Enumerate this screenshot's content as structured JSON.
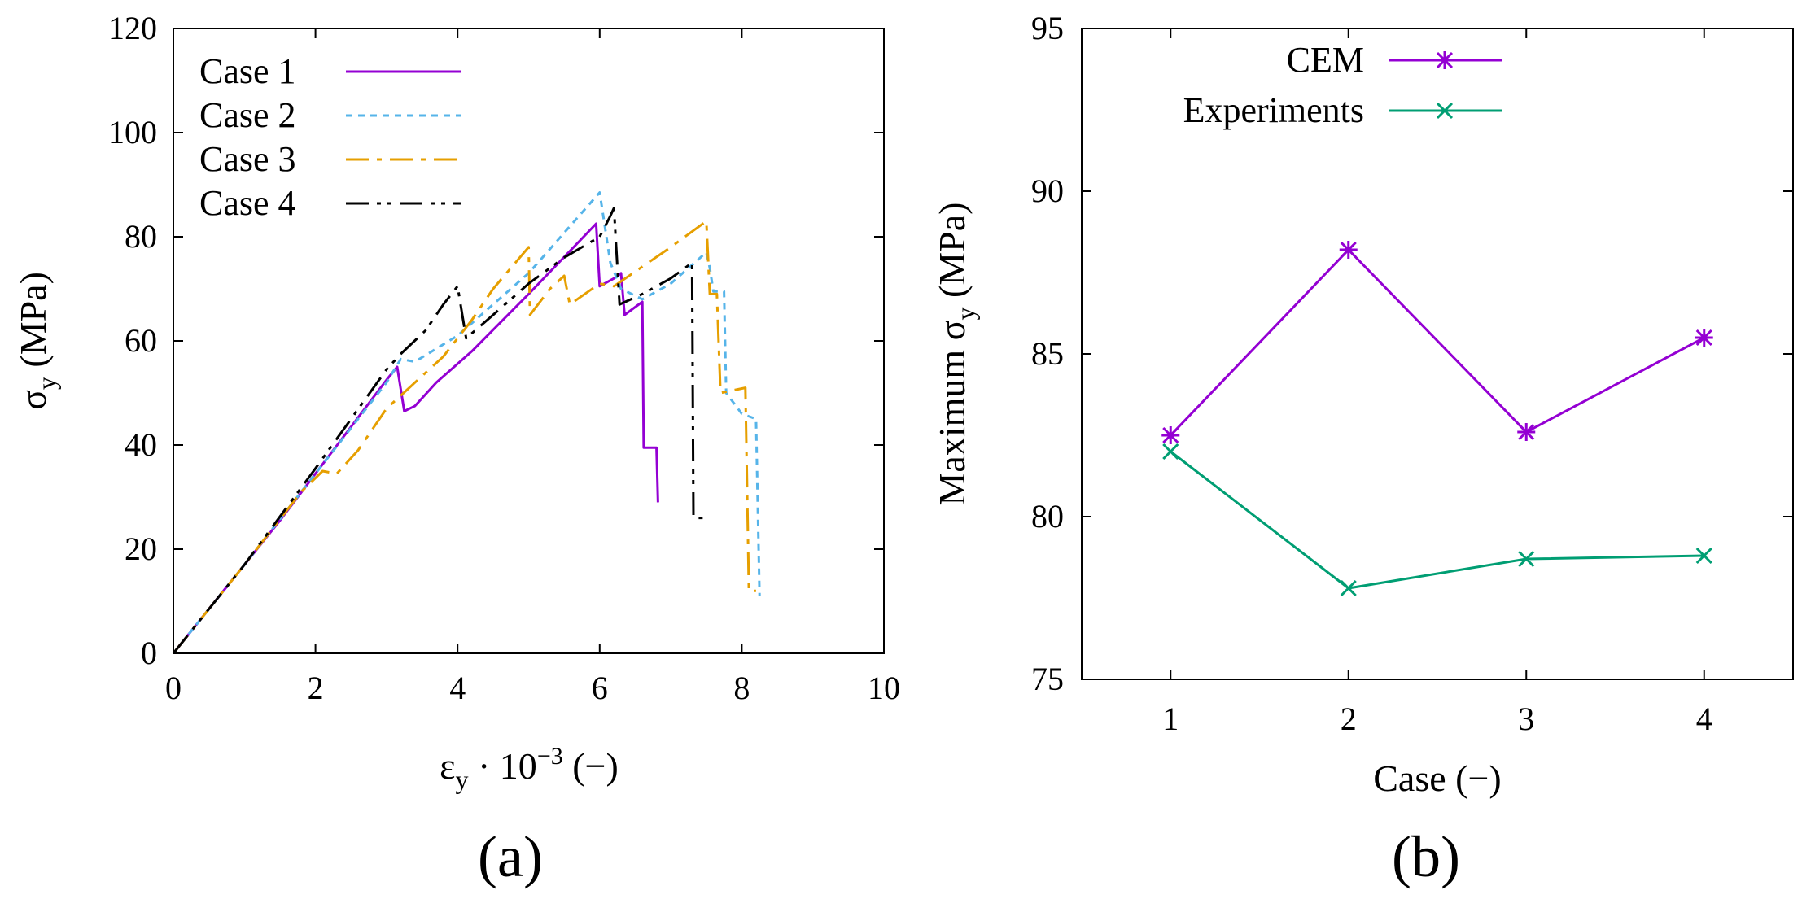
{
  "chart_data": [
    {
      "id": "a",
      "type": "line",
      "panel_label": "(a)",
      "xlabel": {
        "sym": "ε",
        "sub": "y",
        "mid": " · 10",
        "sup": "−3",
        "unit": "  (−)"
      },
      "ylabel": {
        "sym": "σ",
        "sub": "y",
        "unit": "  (MPa)"
      },
      "xlim": [
        0,
        10
      ],
      "ylim": [
        0,
        120
      ],
      "xticks": [
        0,
        2,
        4,
        6,
        8,
        10
      ],
      "yticks": [
        0,
        20,
        40,
        60,
        80,
        100,
        120
      ],
      "grid": false,
      "legend_position": "top-left",
      "series": [
        {
          "name": "Case 1",
          "color": "#9400D3",
          "dash": "",
          "points": [
            [
              0,
              0
            ],
            [
              0.5,
              8.5
            ],
            [
              1,
              17
            ],
            [
              1.5,
              25.5
            ],
            [
              2,
              34.5
            ],
            [
              2.5,
              43.5
            ],
            [
              3,
              52.5
            ],
            [
              3.15,
              55
            ],
            [
              3.25,
              46.5
            ],
            [
              3.4,
              47.5
            ],
            [
              3.7,
              52
            ],
            [
              4.2,
              58
            ],
            [
              5,
              69
            ],
            [
              5.95,
              82.5
            ],
            [
              6.0,
              70.5
            ],
            [
              6.2,
              72
            ],
            [
              6.3,
              73
            ],
            [
              6.35,
              65
            ],
            [
              6.6,
              67.5
            ],
            [
              6.62,
              39.5
            ],
            [
              6.8,
              39.5
            ],
            [
              6.82,
              29
            ]
          ]
        },
        {
          "name": "Case 2",
          "color": "#56B4E9",
          "dash": "8,7",
          "points": [
            [
              0,
              0
            ],
            [
              1,
              17
            ],
            [
              2,
              34.5
            ],
            [
              3,
              52
            ],
            [
              3.2,
              56.5
            ],
            [
              3.4,
              56
            ],
            [
              4,
              61
            ],
            [
              5,
              73
            ],
            [
              6,
              88.5
            ],
            [
              6.15,
              75
            ],
            [
              6.3,
              70
            ],
            [
              6.6,
              68
            ],
            [
              7,
              71
            ],
            [
              7.5,
              77
            ],
            [
              7.55,
              74
            ],
            [
              7.6,
              69.5
            ],
            [
              7.75,
              69.5
            ],
            [
              7.78,
              50
            ],
            [
              8,
              46
            ],
            [
              8.2,
              45
            ],
            [
              8.25,
              11
            ]
          ]
        },
        {
          "name": "Case 3",
          "color": "#E69F00",
          "dash": "28,10,6,10",
          "points": [
            [
              0,
              0
            ],
            [
              1,
              17
            ],
            [
              1.8,
              31
            ],
            [
              2.1,
              35
            ],
            [
              2.3,
              34.5
            ],
            [
              2.6,
              39
            ],
            [
              3,
              47
            ],
            [
              3.4,
              52
            ],
            [
              3.8,
              57
            ],
            [
              4.2,
              64
            ],
            [
              4.5,
              70
            ],
            [
              5,
              78
            ],
            [
              5.02,
              65
            ],
            [
              5.3,
              70
            ],
            [
              5.5,
              72.5
            ],
            [
              5.58,
              67
            ],
            [
              6.0,
              71
            ],
            [
              6.2,
              70.5
            ],
            [
              7,
              78
            ],
            [
              7.5,
              83
            ],
            [
              7.55,
              69
            ],
            [
              7.65,
              69
            ],
            [
              7.7,
              50
            ],
            [
              8.05,
              51
            ],
            [
              8.1,
              12
            ],
            [
              8.2,
              12
            ]
          ]
        },
        {
          "name": "Case 4",
          "color": "#000000",
          "dash": "28,10,5,8,5,10",
          "points": [
            [
              0,
              0
            ],
            [
              1,
              17
            ],
            [
              2,
              35.5
            ],
            [
              2.5,
              45
            ],
            [
              3,
              54.5
            ],
            [
              3.2,
              57.5
            ],
            [
              3.55,
              62
            ],
            [
              3.8,
              67
            ],
            [
              4.0,
              70.5
            ],
            [
              4.12,
              60.5
            ],
            [
              4.5,
              65
            ],
            [
              5.0,
              71
            ],
            [
              5.5,
              76
            ],
            [
              6.0,
              80
            ],
            [
              6.15,
              84
            ],
            [
              6.2,
              85.5
            ],
            [
              6.28,
              67
            ],
            [
              6.6,
              69
            ],
            [
              7.0,
              72
            ],
            [
              7.3,
              75
            ],
            [
              7.32,
              26
            ],
            [
              7.45,
              26
            ]
          ]
        }
      ]
    },
    {
      "id": "b",
      "type": "line",
      "panel_label": "(b)",
      "xlabel": "Case (−)",
      "ylabel": {
        "prefix": "Maximum ",
        "sym": "σ",
        "sub": "y",
        "unit": "  (MPa)"
      },
      "xlim": [
        0.5,
        4.5
      ],
      "ylim": [
        75,
        95
      ],
      "xticks": [
        1,
        2,
        3,
        4
      ],
      "yticks": [
        75,
        80,
        85,
        90,
        95
      ],
      "grid": false,
      "legend_position": "top-center",
      "series": [
        {
          "name": "CEM",
          "color": "#9400D3",
          "marker": "asterisk",
          "x": [
            1,
            2,
            3,
            4
          ],
          "values": [
            82.5,
            88.2,
            82.6,
            85.5
          ]
        },
        {
          "name": "Experiments",
          "color": "#009E73",
          "marker": "x",
          "x": [
            1,
            2,
            3,
            4
          ],
          "values": [
            82.0,
            77.8,
            78.7,
            78.8
          ]
        }
      ]
    }
  ]
}
